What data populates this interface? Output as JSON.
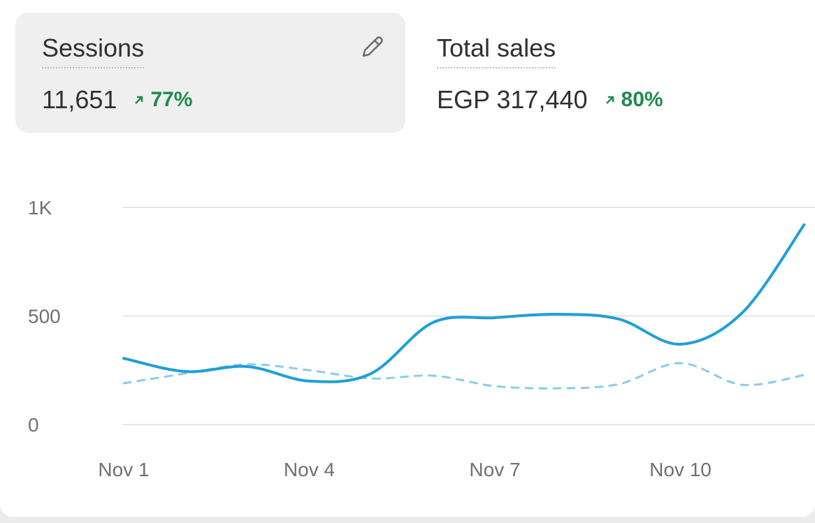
{
  "metrics": [
    {
      "label": "Sessions",
      "value": "11,651",
      "change": "77%"
    },
    {
      "label": "Total sales",
      "value": "EGP 317,440",
      "change": "80%"
    }
  ],
  "chart_data": {
    "type": "line",
    "categories": [
      "Nov 1",
      null,
      null,
      "Nov 4",
      null,
      null,
      "Nov 7",
      null,
      null,
      "Nov 10",
      null,
      null
    ],
    "series": [
      {
        "color": "#1f9fd8",
        "line_style": "solid",
        "values": [
          305,
          244,
          267,
          200,
          235,
          470,
          492,
          508,
          486,
          370,
          515,
          920
        ]
      },
      {
        "color": "#8ccbe9",
        "line_style": "dashed",
        "values": [
          190,
          235,
          277,
          250,
          212,
          225,
          177,
          167,
          186,
          283,
          183,
          228
        ]
      }
    ],
    "ylim": [
      0,
      1000
    ],
    "yticks": [
      0,
      500,
      {
        "value": 1000,
        "label": "1K"
      }
    ],
    "grid": true
  }
}
